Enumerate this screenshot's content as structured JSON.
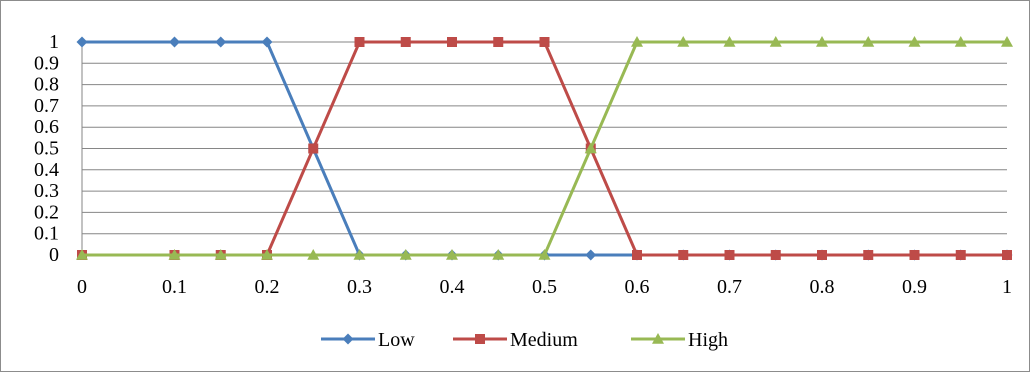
{
  "chart_data": {
    "type": "line",
    "title": "",
    "xlabel": "",
    "ylabel": "",
    "x": [
      0,
      0.1,
      0.15,
      0.2,
      0.25,
      0.3,
      0.35,
      0.4,
      0.45,
      0.5,
      0.55,
      0.6,
      0.65,
      0.7,
      0.75,
      0.8,
      0.85,
      0.9,
      0.95,
      1
    ],
    "xlim": [
      0,
      1
    ],
    "ylim": [
      0,
      1
    ],
    "x_ticks": [
      "0",
      "0.1",
      "0.2",
      "0.3",
      "0.4",
      "0.5",
      "0.6",
      "0.7",
      "0.8",
      "0.9",
      "1"
    ],
    "y_ticks": [
      "0",
      "0.1",
      "0.2",
      "0.3",
      "0.4",
      "0.5",
      "0.6",
      "0.7",
      "0.8",
      "0.9",
      "1"
    ],
    "grid": "horizontal",
    "legend_position": "bottom",
    "series": [
      {
        "name": "Low",
        "color": "#4a7ebb",
        "marker": "diamond",
        "values": [
          1,
          1,
          1,
          1,
          0.5,
          0,
          0,
          0,
          0,
          0,
          0,
          0,
          0,
          0,
          0,
          0,
          0,
          0,
          0,
          0
        ]
      },
      {
        "name": "Medium",
        "color": "#be4b48",
        "marker": "square",
        "values": [
          0,
          0,
          0,
          0,
          0.5,
          1,
          1,
          1,
          1,
          1,
          0.5,
          0,
          0,
          0,
          0,
          0,
          0,
          0,
          0,
          0
        ]
      },
      {
        "name": "High",
        "color": "#98b954",
        "marker": "triangle",
        "values": [
          0,
          0,
          0,
          0,
          0,
          0,
          0,
          0,
          0,
          0,
          0.5,
          1,
          1,
          1,
          1,
          1,
          1,
          1,
          1,
          1
        ]
      }
    ]
  }
}
